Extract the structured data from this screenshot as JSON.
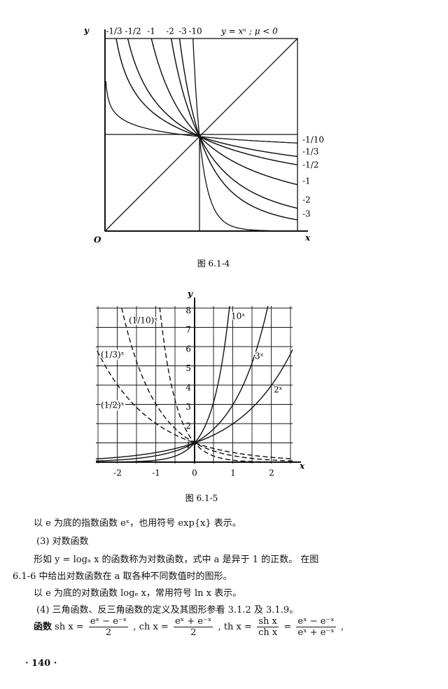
{
  "figure1": {
    "axis_y": "y",
    "axis_x": "x",
    "origin": "O",
    "formula": "y = xᵘ ; μ < 0",
    "top_labels": [
      "-1/3",
      "-1/2",
      "-1",
      "-2",
      "-3",
      "-10"
    ],
    "right_labels": [
      "-1/10",
      "-1/3",
      "-1/2",
      "-1",
      "-2",
      "-3"
    ],
    "caption": "图 6.1-4"
  },
  "figure2": {
    "axis_y": "y",
    "axis_x": "x",
    "curve_labels": [
      "(1/10)ˣ",
      "(1/3)ˣ",
      "(1/2)ˣ",
      "10ˣ",
      "3ˣ",
      "2ˣ"
    ],
    "xticks": [
      "-2",
      "-1",
      "0",
      "1",
      "2"
    ],
    "yticks": [
      "1",
      "2",
      "3",
      "4",
      "5",
      "6",
      "7",
      "8"
    ],
    "caption": "图 6.1-5"
  },
  "paragraphs": [
    "以 e 为底的指数函数 eˣ，也用符号 exp{x} 表示。",
    "(3) 对数函数",
    "形如 y = logₐ x 的函数称为对数函数，式中 a 是异于 1 的正数。 在图",
    "6.1-6 中给出对数函数在 a 取各种不同数值时的图形。",
    "以 e 为底的对数函数 logₑ x，常用符号 ln x 表示。",
    "(4) 三角函数、反三角函数的定义及其图形参看 3.1.2 及 3.1.9。"
  ],
  "formula_line": {
    "lead": "函数",
    "sh": "sh x =",
    "sh_num": "eˣ − e⁻ˣ",
    "sh_den": "2",
    "ch": ", ch x =",
    "ch_num": "eˣ + e⁻ˣ",
    "ch_den": "2",
    "th": ", th x =",
    "th_num": "sh x",
    "th_den": "ch x",
    "eq": "=",
    "th2_num": "eˣ − e⁻ˣ",
    "th2_den": "eˣ + e⁻ˣ",
    "end": ","
  },
  "page_number": "· 140 ·"
}
